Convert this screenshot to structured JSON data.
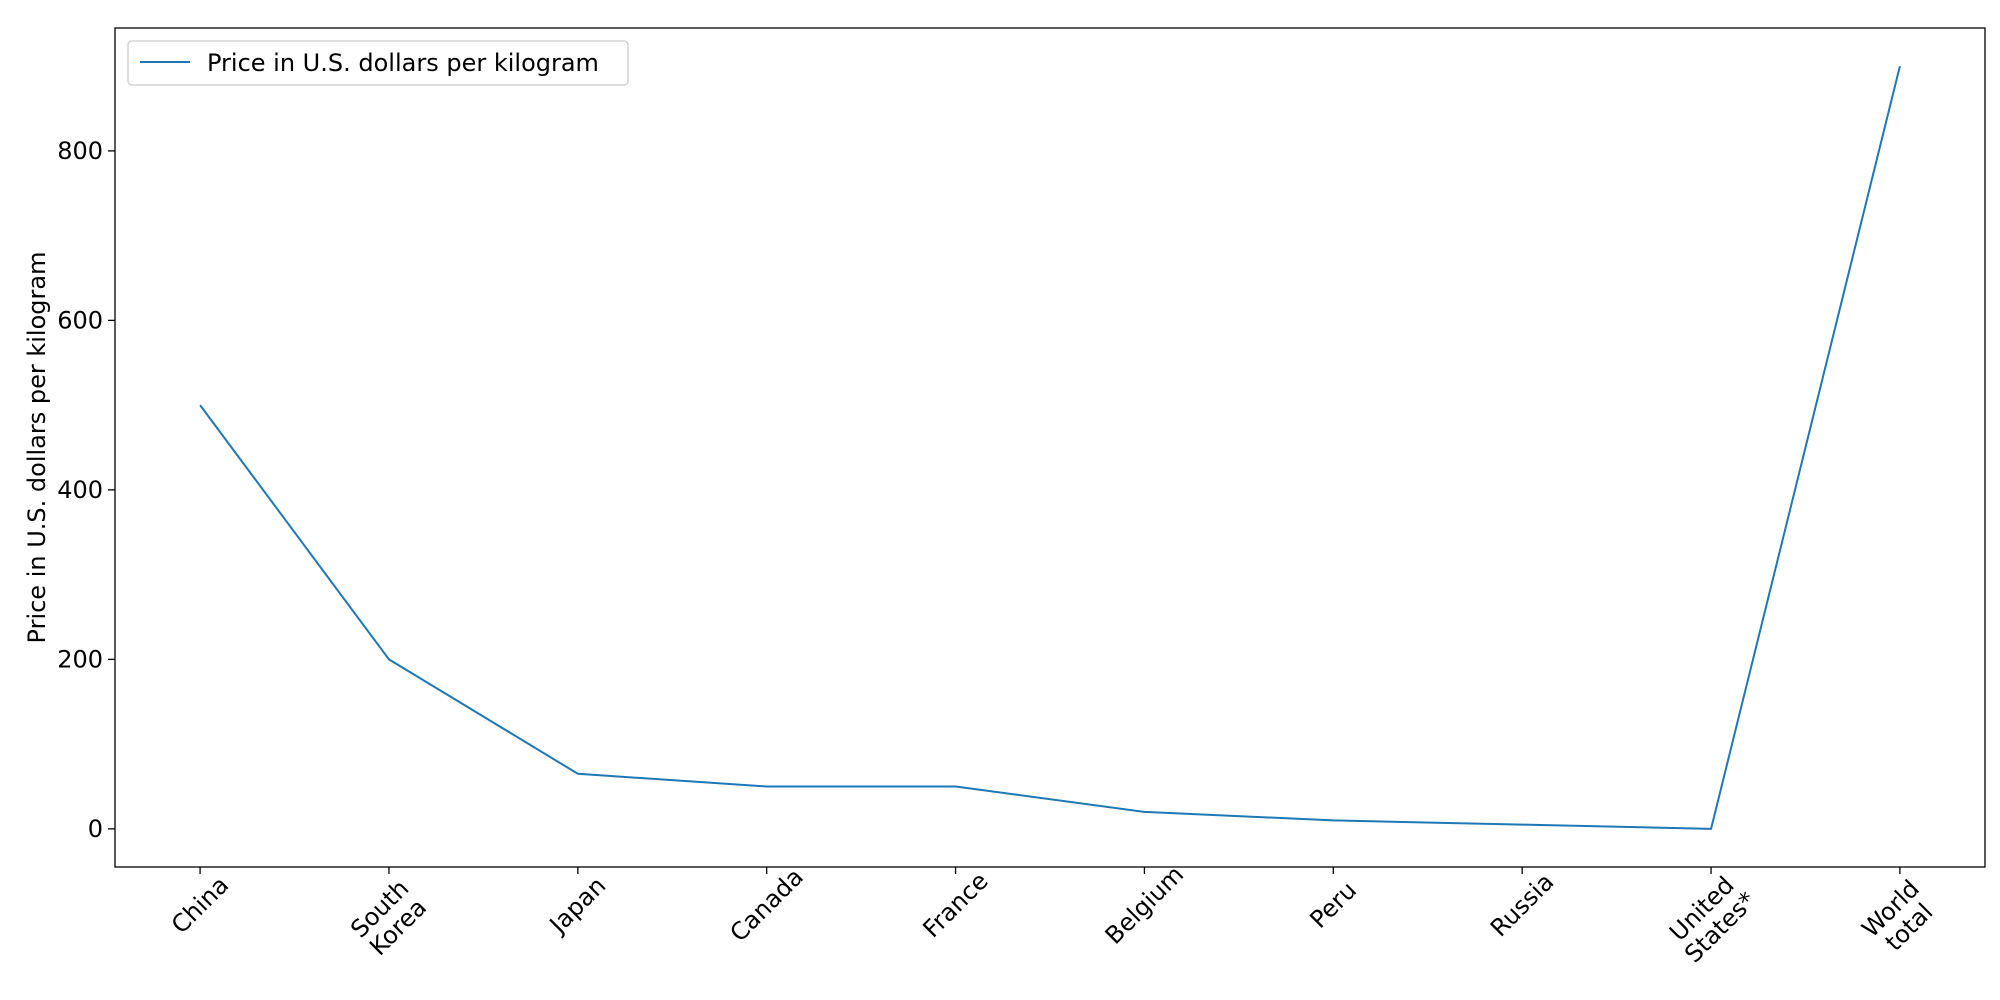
{
  "chart_data": {
    "type": "line",
    "title": "",
    "xlabel": "",
    "ylabel": "Price in U.S. dollars per kilogram",
    "categories": [
      [
        "China"
      ],
      [
        "South",
        "Korea"
      ],
      [
        "Japan"
      ],
      [
        "Canada"
      ],
      [
        "France"
      ],
      [
        "Belgium"
      ],
      [
        "Peru"
      ],
      [
        "Russia"
      ],
      [
        "United",
        "States*"
      ],
      [
        "World",
        "total"
      ]
    ],
    "series": [
      {
        "name": "Price in U.S. dollars per kilogram",
        "color": "#1f77b4",
        "values": [
          500,
          200,
          65,
          50,
          50,
          20,
          10,
          5,
          0,
          900
        ]
      }
    ],
    "yticks": [
      0,
      200,
      400,
      600,
      800
    ],
    "ylim": [
      -45,
      945
    ],
    "grid": false,
    "legend_position": "top-left",
    "x_tick_rotation": -45
  }
}
